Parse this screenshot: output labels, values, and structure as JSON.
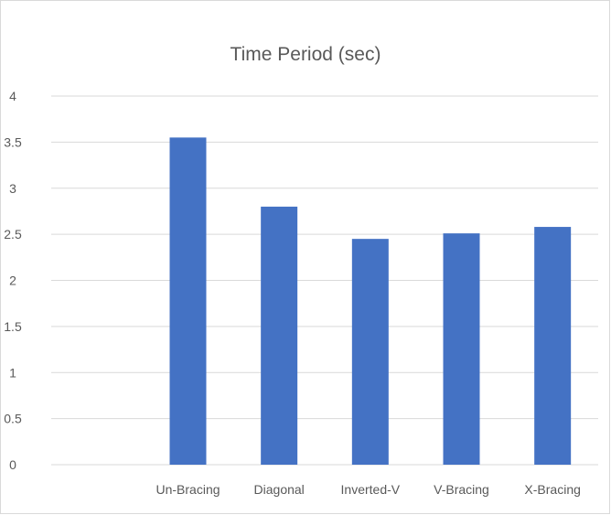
{
  "chart_data": {
    "type": "bar",
    "title": "Time Period (sec)",
    "xlabel": "",
    "ylabel": "",
    "categories": [
      "",
      "Un-Bracing",
      "Diagonal",
      "Inverted-V",
      "V-Bracing",
      "X-Bracing"
    ],
    "values": [
      null,
      3.55,
      2.8,
      2.45,
      2.51,
      2.58
    ],
    "ylim": [
      0,
      4
    ],
    "yticks": [
      "0",
      "0.5",
      "1",
      "1.5",
      "2",
      "2.5",
      "3",
      "3.5",
      "4"
    ],
    "grid": true,
    "legend": "none",
    "colors": {
      "bar": "#4472C4",
      "grid": "#d9d9d9",
      "text": "#595959",
      "border": "#d9d9d9"
    }
  }
}
